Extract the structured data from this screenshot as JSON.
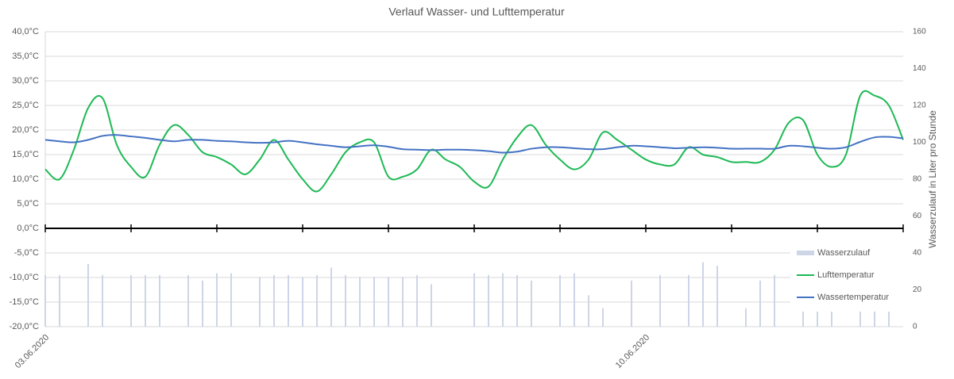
{
  "chart_data": {
    "type": "combo",
    "title": "Verlauf Wasser- und Lufttemperatur",
    "y2_label": "Wasserzulauf in Liter pro Stunde",
    "categories": [
      "03.06.2020",
      null,
      null,
      null,
      null,
      null,
      null,
      null,
      null,
      null,
      null,
      null,
      null,
      null,
      null,
      null,
      null,
      null,
      null,
      null,
      null,
      null,
      null,
      null,
      null,
      null,
      null,
      null,
      null,
      null,
      null,
      null,
      null,
      null,
      null,
      null,
      null,
      null,
      null,
      null,
      null,
      null,
      "10.06.2020",
      null,
      null,
      null,
      null,
      null,
      null,
      null,
      null,
      null,
      null,
      null,
      null,
      null,
      null,
      null,
      null,
      null,
      null
    ],
    "series": [
      {
        "name": "Wasserzulauf",
        "type": "bar",
        "axis": "y2",
        "color": "#cdd5e6",
        "values": [
          28,
          28,
          null,
          34,
          28,
          null,
          28,
          28,
          28,
          null,
          28,
          25,
          29,
          29,
          null,
          27,
          28,
          28,
          27,
          28,
          32,
          28,
          27,
          27,
          27,
          27,
          28,
          23,
          null,
          null,
          29,
          28,
          29,
          28,
          25,
          null,
          28,
          29,
          17,
          10,
          null,
          25,
          null,
          28,
          null,
          28,
          35,
          33,
          null,
          10,
          25,
          28,
          null,
          10,
          10,
          10,
          null,
          10,
          10,
          10,
          null
        ]
      },
      {
        "name": "Lufttemperatur",
        "type": "line",
        "color": "#1db954",
        "values": [
          12,
          10,
          16,
          24.5,
          26.5,
          17,
          12.5,
          10.5,
          17,
          21,
          19,
          15.5,
          14.5,
          13,
          11,
          14,
          18,
          14,
          10,
          7.5,
          11,
          15.5,
          17.5,
          17.5,
          10.5,
          10.5,
          12,
          16,
          14,
          12.5,
          9.5,
          8.5,
          14,
          18.5,
          21,
          17,
          14,
          12,
          14,
          19.5,
          18,
          16,
          14,
          13,
          13,
          16.5,
          15,
          14.5,
          13.5,
          13.5,
          13.5,
          16,
          21.5,
          22,
          15,
          12.5,
          15,
          27,
          27,
          25,
          18
        ]
      },
      {
        "name": "Wassertemperatur",
        "type": "line",
        "color": "#4472c4",
        "values": [
          18,
          17.7,
          17.5,
          18,
          18.8,
          19,
          18.7,
          18.4,
          18,
          17.7,
          18,
          18,
          17.8,
          17.7,
          17.5,
          17.4,
          17.5,
          17.8,
          17.5,
          17.1,
          16.8,
          16.5,
          16.7,
          16.9,
          16.6,
          16.1,
          16,
          15.9,
          16,
          16,
          15.9,
          15.7,
          15.4,
          15.6,
          16.2,
          16.5,
          16.5,
          16.3,
          16.1,
          16.1,
          16.5,
          16.8,
          16.7,
          16.5,
          16.3,
          16.4,
          16.5,
          16.4,
          16.2,
          16.2,
          16.2,
          16.2,
          16.8,
          16.7,
          16.4,
          16.2,
          16.5,
          17.6,
          18.5,
          18.6,
          18.3
        ]
      }
    ],
    "ylim": [
      -20,
      40
    ],
    "yticks": [
      {
        "value": -20,
        "label": "-20,0°C"
      },
      {
        "value": -15,
        "label": "-15,0°C"
      },
      {
        "value": -10,
        "label": "-10,0°C"
      },
      {
        "value": -5,
        "label": "-5,0°C"
      },
      {
        "value": 0,
        "label": "0,0°C"
      },
      {
        "value": 5,
        "label": "5,0°C"
      },
      {
        "value": 10,
        "label": "10,0°C"
      },
      {
        "value": 15,
        "label": "15,0°C"
      },
      {
        "value": 20,
        "label": "20,0°C"
      },
      {
        "value": 25,
        "label": "25,0°C"
      },
      {
        "value": 30,
        "label": "30,0°C"
      },
      {
        "value": 35,
        "label": "35,0°C"
      },
      {
        "value": 40,
        "label": "40,0°C"
      }
    ],
    "y2lim": [
      0,
      160
    ],
    "y2ticks": [
      0,
      20,
      40,
      60,
      80,
      100,
      120,
      140,
      160
    ],
    "grid": true,
    "legend": "right"
  }
}
